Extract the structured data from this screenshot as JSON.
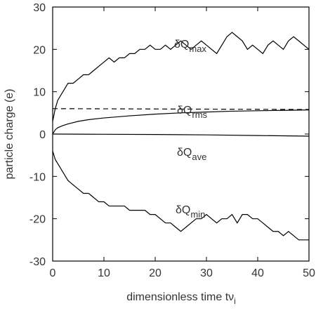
{
  "chart_data": {
    "type": "line",
    "xlabel": "dimensionless time tν",
    "xlabel_sub": "i",
    "ylabel": "particle charge (e)",
    "xlim": [
      0,
      50
    ],
    "xticks": [
      0,
      10,
      20,
      30,
      40,
      50
    ],
    "ylim": [
      -30,
      30
    ],
    "yticks": [
      -30,
      -20,
      -10,
      0,
      10,
      20,
      30
    ],
    "series": [
      {
        "color": "#000000",
        "dash": false,
        "x": [
          0,
          0.5,
          1,
          2,
          3,
          4,
          5,
          6,
          7,
          8,
          9,
          10,
          11,
          12,
          13,
          14,
          15,
          16,
          17,
          18,
          19,
          20,
          21,
          22,
          23,
          24,
          25,
          26,
          27,
          28,
          29,
          30,
          31,
          32,
          33,
          34,
          35,
          36,
          37,
          38,
          39,
          40,
          41,
          42,
          43,
          44,
          45,
          46,
          47,
          48,
          49,
          50
        ],
        "values": [
          3,
          6,
          8,
          10,
          12,
          12,
          13,
          14,
          14,
          15,
          16,
          17,
          18,
          17,
          18,
          18,
          19,
          19,
          20,
          20,
          21,
          20,
          20,
          21,
          20,
          21,
          22,
          21,
          20,
          21,
          22,
          21,
          20,
          19,
          21,
          23,
          24,
          23,
          22,
          20,
          21,
          20,
          19,
          21,
          22,
          21,
          20,
          22,
          23,
          22,
          21,
          20
        ]
      },
      {
        "color": "#000000",
        "dash": false,
        "x": [
          0,
          0.5,
          1,
          2,
          3,
          5,
          7,
          10,
          15,
          20,
          25,
          30,
          35,
          40,
          45,
          50
        ],
        "values": [
          0,
          1,
          1.5,
          2,
          2.4,
          3,
          3.4,
          3.8,
          4.3,
          4.7,
          5,
          5.2,
          5.4,
          5.5,
          5.6,
          5.7
        ]
      },
      {
        "color": "#000000",
        "dash": true,
        "x": [
          0,
          50
        ],
        "values": [
          6,
          5.8
        ]
      },
      {
        "color": "#000000",
        "dash": false,
        "x": [
          0,
          10,
          20,
          30,
          40,
          50
        ],
        "values": [
          0,
          -0.05,
          -0.1,
          -0.2,
          -0.35,
          -0.5
        ]
      },
      {
        "color": "#000000",
        "dash": false,
        "x": [
          0,
          0.5,
          1,
          2,
          3,
          4,
          5,
          6,
          7,
          8,
          9,
          10,
          11,
          12,
          13,
          14,
          15,
          16,
          17,
          18,
          19,
          20,
          21,
          22,
          23,
          24,
          25,
          26,
          27,
          28,
          29,
          30,
          31,
          32,
          33,
          34,
          35,
          36,
          37,
          38,
          39,
          40,
          41,
          42,
          43,
          44,
          45,
          46,
          47,
          48,
          49,
          50
        ],
        "values": [
          -4,
          -6,
          -7,
          -9,
          -11,
          -12,
          -13,
          -14,
          -14,
          -15,
          -16,
          -16,
          -17,
          -17,
          -17,
          -17,
          -18,
          -18,
          -18,
          -18,
          -19,
          -19,
          -20,
          -21,
          -21,
          -22,
          -23,
          -22,
          -21,
          -20,
          -20,
          -19,
          -20,
          -21,
          -20,
          -20,
          -19,
          -21,
          -19,
          -19,
          -20,
          -20,
          -21,
          -22,
          -23,
          -23,
          -24,
          -23,
          -24,
          -25,
          -25,
          -25
        ]
      }
    ],
    "annotations": [
      {
        "text": "δQ",
        "sub": "max"
      },
      {
        "text": "δQ",
        "sub": "rms"
      },
      {
        "text": "δQ",
        "sub": "ave"
      },
      {
        "text": "δQ",
        "sub": "min"
      }
    ]
  }
}
